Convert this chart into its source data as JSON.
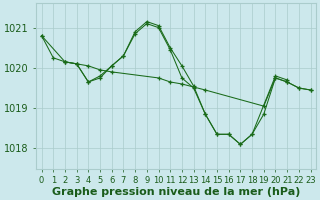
{
  "xlabel": "Graphe pression niveau de la mer (hPa)",
  "xlim": [
    -0.5,
    23.5
  ],
  "ylim": [
    1017.5,
    1021.6
  ],
  "yticks": [
    1018,
    1019,
    1020,
    1021
  ],
  "xticks": [
    0,
    1,
    2,
    3,
    4,
    5,
    6,
    7,
    8,
    9,
    10,
    11,
    12,
    13,
    14,
    15,
    16,
    17,
    18,
    19,
    20,
    21,
    22,
    23
  ],
  "xtick_labels": [
    "0",
    "1",
    "2",
    "3",
    "4",
    "5",
    "6",
    "7",
    "8",
    "9",
    "10",
    "11",
    "12",
    "13",
    "14",
    "15",
    "16",
    "17",
    "18",
    "19",
    "20",
    "21",
    "22",
    "23"
  ],
  "background_color": "#cce8ec",
  "grid_color": "#aacccc",
  "line_color": "#1a6b1a",
  "series": [
    {
      "x": [
        0,
        1,
        2,
        3,
        4,
        5,
        6,
        7,
        8,
        9,
        10,
        11,
        12,
        13,
        14,
        15,
        16,
        17,
        18,
        20,
        21
      ],
      "y": [
        1020.8,
        1020.25,
        1020.15,
        1020.1,
        1019.65,
        1019.8,
        1020.05,
        1020.3,
        1020.9,
        1021.15,
        1021.05,
        1020.5,
        1020.05,
        1019.55,
        1018.85,
        1018.35,
        1018.35,
        1018.1,
        1018.35,
        1019.8,
        1019.7
      ]
    },
    {
      "x": [
        0,
        2,
        3,
        4,
        5,
        6,
        10,
        11,
        12,
        14,
        19,
        20,
        21,
        22,
        23
      ],
      "y": [
        1020.8,
        1020.15,
        1020.1,
        1020.05,
        1019.95,
        1019.9,
        1019.75,
        1019.65,
        1019.6,
        1019.45,
        1019.05,
        1019.75,
        1019.65,
        1019.5,
        1019.45
      ]
    },
    {
      "x": [
        2,
        3,
        4,
        5,
        6,
        7,
        8,
        9,
        10,
        11,
        12,
        13,
        14,
        15,
        16,
        17,
        18,
        19,
        20,
        21,
        22,
        23
      ],
      "y": [
        1020.15,
        1020.1,
        1019.65,
        1019.75,
        1020.05,
        1020.3,
        1020.85,
        1021.1,
        1021.0,
        1020.45,
        1019.75,
        1019.5,
        1018.85,
        1018.35,
        1018.35,
        1018.1,
        1018.35,
        1018.85,
        1019.75,
        1019.65,
        1019.5,
        1019.45
      ]
    }
  ],
  "font_color": "#1a5c1a",
  "font_size_xlabel": 8,
  "font_size_ticks": 7
}
